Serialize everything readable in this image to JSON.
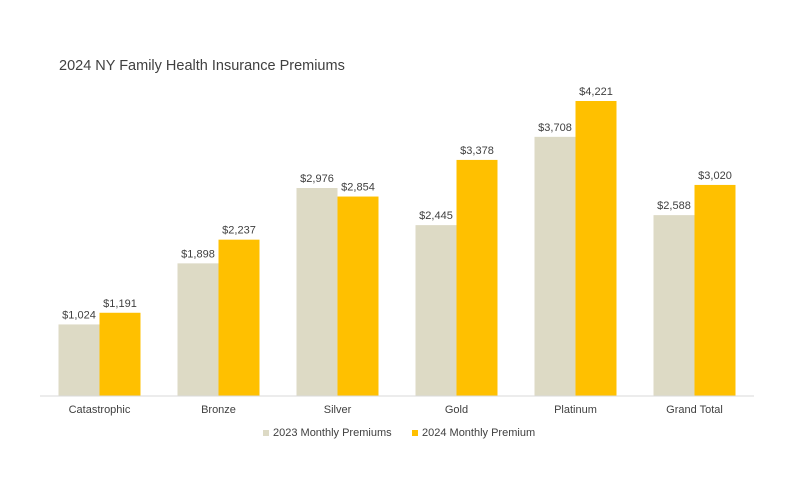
{
  "chart_data": {
    "type": "bar",
    "title": "2024 NY Family Health Insurance Premiums",
    "categories": [
      "Catastrophic",
      "Bronze",
      "Silver",
      "Gold",
      "Platinum",
      "Grand Total"
    ],
    "series": [
      {
        "name": "2023 Monthly Premiums",
        "values": [
          1024,
          1898,
          2976,
          2445,
          3708,
          2588
        ],
        "labels": [
          "$1,024",
          "$1,898",
          "$2,976",
          "$2,445",
          "$3,708",
          "$2,588"
        ],
        "color": "#DDDAC5"
      },
      {
        "name": "2024 Monthly Premium",
        "values": [
          1191,
          2237,
          2854,
          3378,
          4221,
          3020
        ],
        "labels": [
          "$1,191",
          "$2,237",
          "$2,854",
          "$3,378",
          "$4,221",
          "$3,020"
        ],
        "color": "#FFC000"
      }
    ],
    "xlabel": "",
    "ylabel": "",
    "ylim": [
      0,
      4221
    ],
    "grid": false,
    "legend": "bottom",
    "axis_color": "#D9D9D9"
  }
}
